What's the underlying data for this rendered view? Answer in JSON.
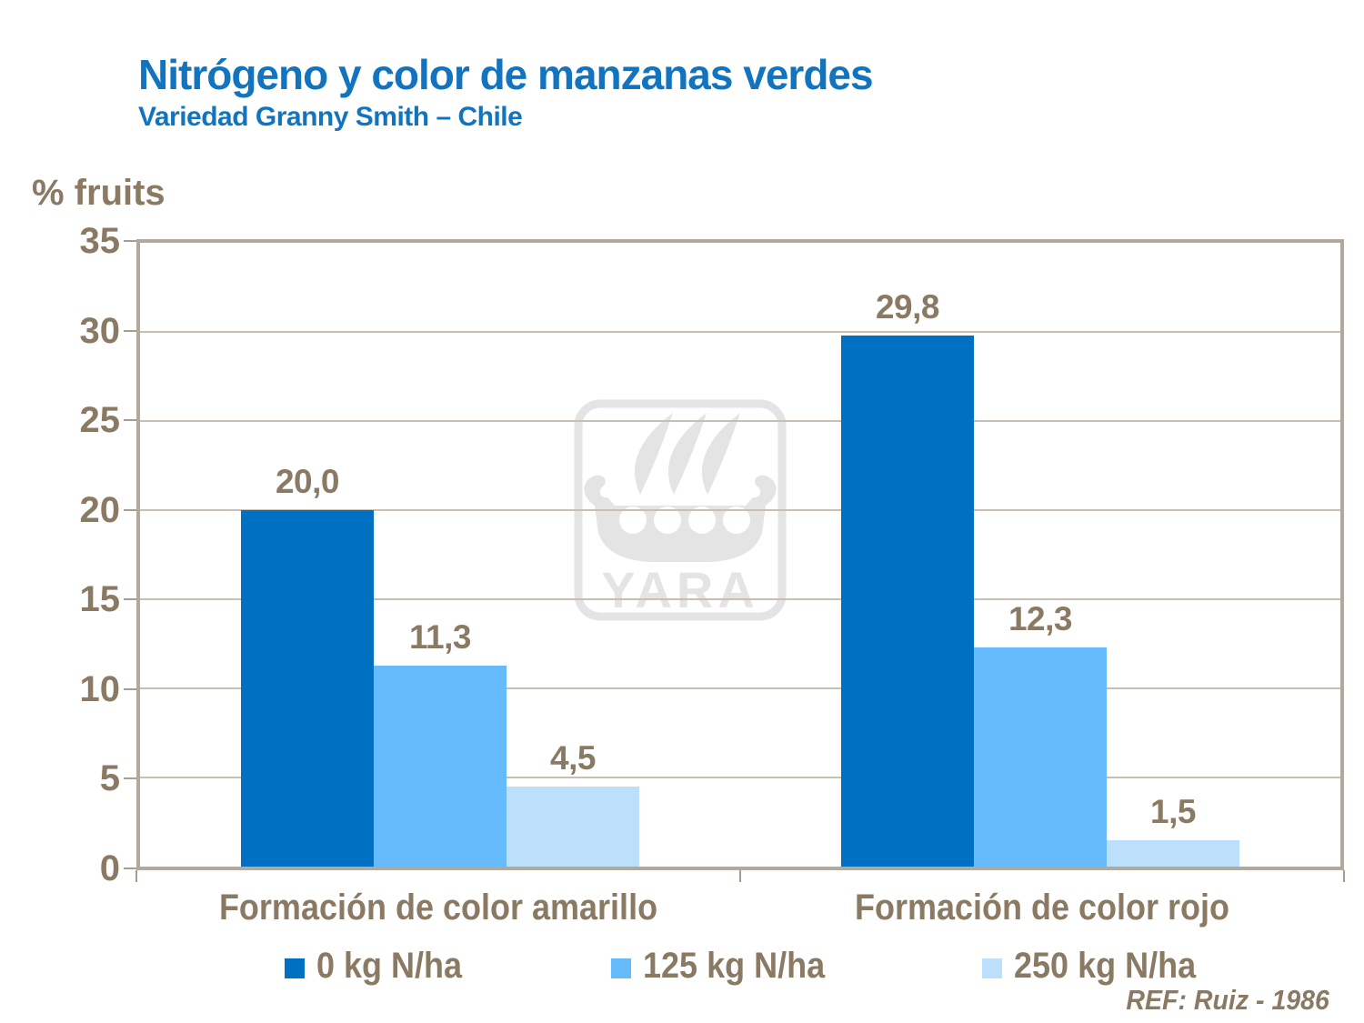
{
  "slide": {
    "title": "Nitrógeno y color de manzanas verdes",
    "subtitle": "Variedad Granny Smith – Chile",
    "reference": "REF: Ruiz - 1986"
  },
  "watermark": {
    "icon": "yara-viking-ship-logo",
    "text": "YARA"
  },
  "colors": {
    "title_blue": "#1274BF",
    "text_brown": "#8A7963",
    "plot_border": "#B2A89B",
    "gridline": "#C8BFB2",
    "tick": "#A79D90",
    "watermark_gray": "#E4E4E4",
    "series_0": "#0070C3",
    "series_1": "#66BBFC",
    "series_2": "#BCDFFC"
  },
  "chart_data": {
    "type": "bar",
    "title": "Nitrógeno y color de manzanas verdes",
    "subtitle": "Variedad Granny Smith – Chile",
    "ylabel": "% fruits",
    "ylim": [
      0,
      35
    ],
    "yticks": [
      35,
      30,
      25,
      20,
      15,
      10,
      5,
      0
    ],
    "grid": true,
    "categories": [
      "Formación de color amarillo",
      "Formación de color rojo"
    ],
    "series": [
      {
        "name": "0 kg N/ha",
        "color": "#0070C3",
        "values": [
          20.0,
          29.8
        ],
        "labels": [
          "20,0",
          "29,8"
        ]
      },
      {
        "name": "125 kg N/ha",
        "color": "#66BBFC",
        "values": [
          11.3,
          12.3
        ],
        "labels": [
          "11,3",
          "12,3"
        ]
      },
      {
        "name": "250 kg N/ha",
        "color": "#BCDFFC",
        "values": [
          4.5,
          1.5
        ],
        "labels": [
          "4,5",
          "1,5"
        ]
      }
    ],
    "legend_position": "bottom",
    "reference": "REF: Ruiz - 1986"
  }
}
